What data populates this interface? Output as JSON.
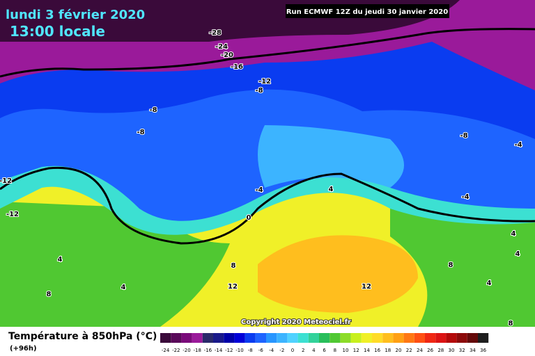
{
  "header": {
    "date": "lundi 3 février 2020",
    "time": "13:00 locale",
    "run": "Run ECMWF 12Z du jeudi 30 janvier 2020"
  },
  "map": {
    "copyright": "Copyright 2020 Meteociel.fr",
    "contour_labels": [
      "-28",
      "-24",
      "-20",
      "-16",
      "-12",
      "-8",
      "-8",
      "-8",
      "-8",
      "-4",
      "-12",
      "-12",
      "-4",
      "0",
      "4",
      "4",
      "4",
      "8",
      "12",
      "12",
      "4",
      "8",
      "8",
      "-4",
      "4",
      "4",
      "8"
    ]
  },
  "footer": {
    "title": "Température à 850hPa (°C)",
    "lead": "(+96h)"
  },
  "legend": {
    "labels": [
      "-24",
      "-22",
      "-20",
      "-18",
      "-16",
      "-14",
      "-12",
      "-10",
      "-8",
      "-6",
      "-4",
      "-2",
      "0",
      "2",
      "4",
      "6",
      "8",
      "10",
      "12",
      "14",
      "16",
      "18",
      "20",
      "22",
      "24",
      "26",
      "28",
      "30",
      "32",
      "34",
      "36"
    ],
    "colors": [
      "#3a0a3a",
      "#5a0a5a",
      "#7a0a7a",
      "#9a1a9a",
      "#2a2a6a",
      "#1a1a8a",
      "#0000a8",
      "#0000d8",
      "#0a3cf0",
      "#1e64ff",
      "#2896ff",
      "#3cb4ff",
      "#50d2ff",
      "#3ce0d2",
      "#32d29a",
      "#28be5a",
      "#50c832",
      "#8cdc28",
      "#c8f01e",
      "#f0f028",
      "#ffdc28",
      "#ffbe1e",
      "#ffa014",
      "#ff7814",
      "#ff5014",
      "#f02814",
      "#dc1414",
      "#b40a0a",
      "#8c0a0a",
      "#640a0a",
      "#1e1e1e"
    ]
  }
}
